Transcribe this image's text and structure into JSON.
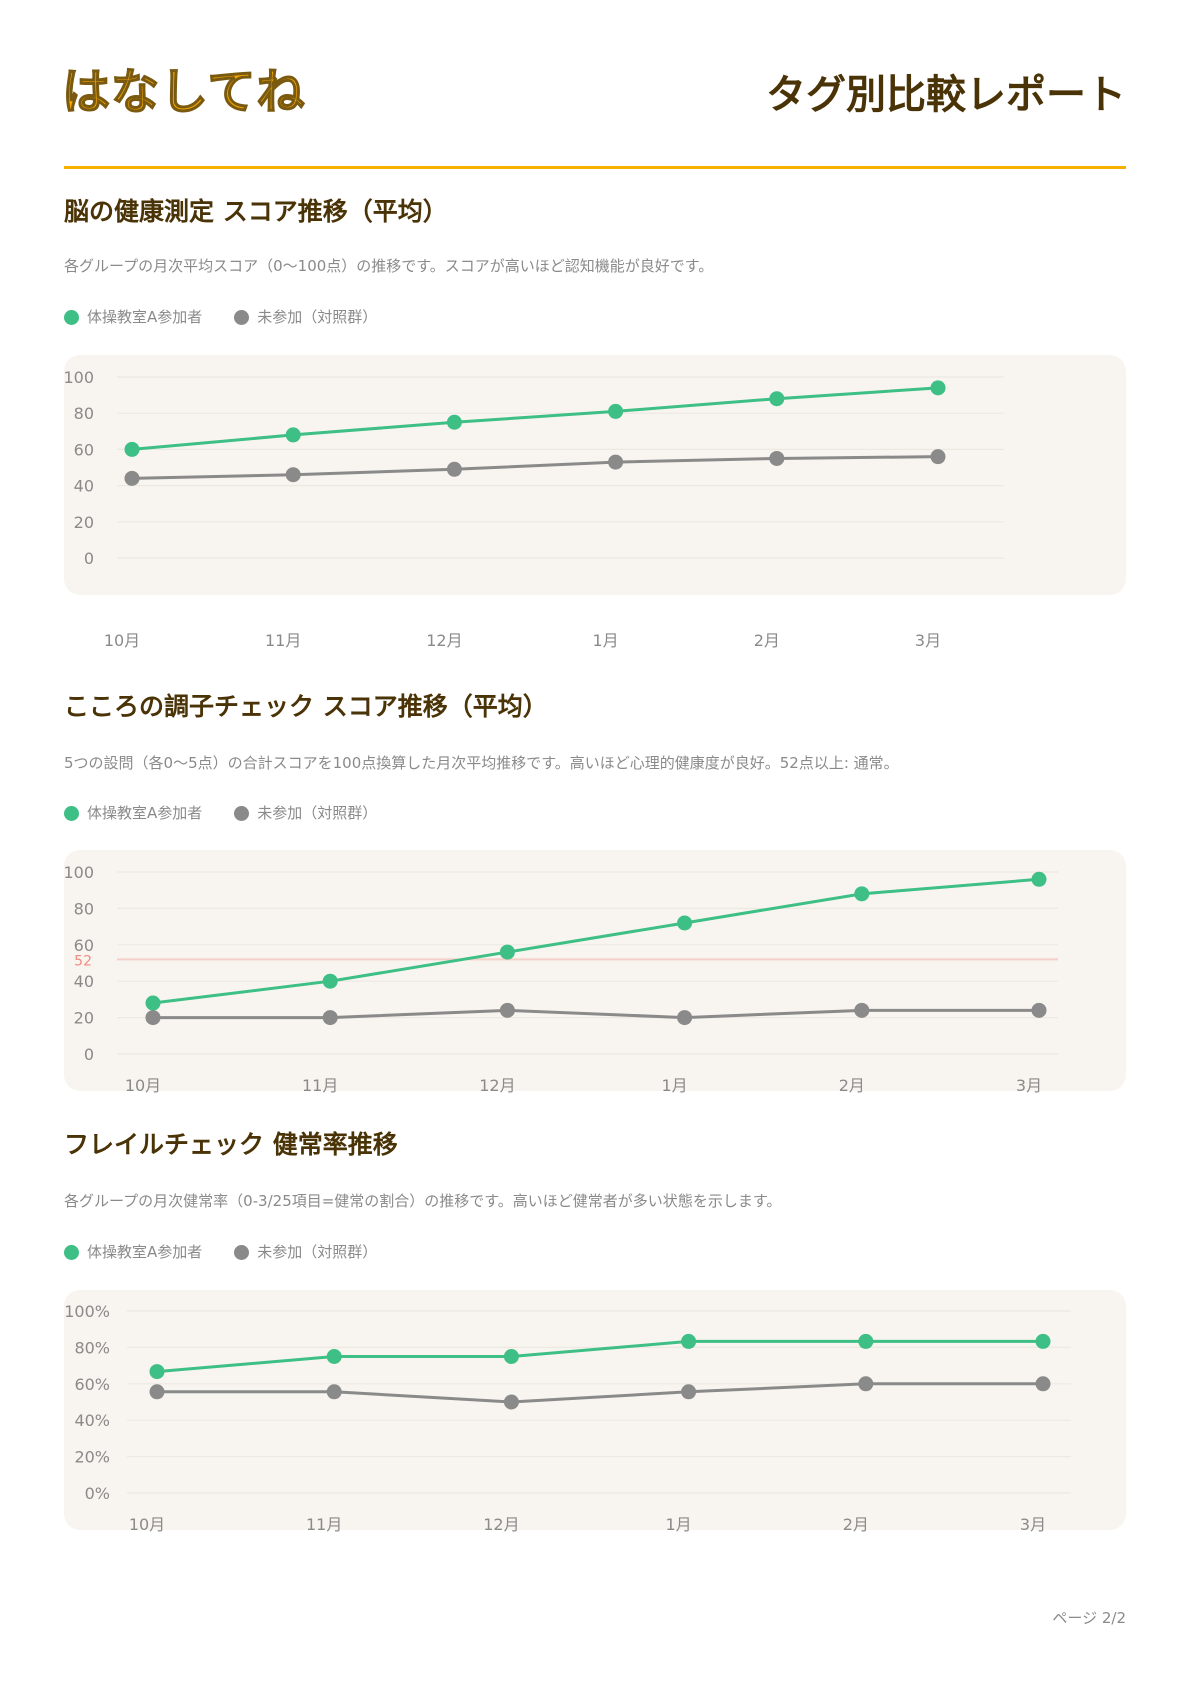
{
  "header": {
    "logo": "はなしてね",
    "title": "タグ別比較レポート"
  },
  "colors": {
    "accent": "#f7b000",
    "participant": "#3dbf85",
    "control": "#8a8a8a",
    "threshold": "#f28b82"
  },
  "legend": {
    "participant": "体操教室A参加者",
    "control": "未参加（対照群）"
  },
  "sections": [
    {
      "title": "脳の健康測定 スコア推移（平均）",
      "description": "各グループの月次平均スコア（0〜100点）の推移です。スコアが高いほど認知機能が良好です。"
    },
    {
      "title": "こころの調子チェック スコア推移（平均）",
      "description": "5つの設問（各0〜5点）の合計スコアを100点換算した月次平均推移です。高いほど心理的健康度が良好。52点以上: 通常。"
    },
    {
      "title": "フレイルチェック 健常率推移",
      "description": "各グループの月次健常率（0-3/25項目=健常の割合）の推移です。高いほど健常者が多い状態を示します。"
    }
  ],
  "chart_data": [
    {
      "type": "line",
      "categories": [
        "10月",
        "11月",
        "12月",
        "1月",
        "2月",
        "3月"
      ],
      "ylim": [
        0,
        100
      ],
      "yticks": [
        "0",
        "20",
        "40",
        "60",
        "80",
        "100"
      ],
      "grid": true,
      "series": [
        {
          "name": "体操教室A参加者",
          "values": [
            60,
            68,
            75,
            81,
            88,
            94
          ]
        },
        {
          "name": "未参加（対照群）",
          "values": [
            44,
            46,
            49,
            53,
            55,
            56
          ]
        }
      ]
    },
    {
      "type": "line",
      "categories": [
        "10月",
        "11月",
        "12月",
        "1月",
        "2月",
        "3月"
      ],
      "ylim": [
        0,
        100
      ],
      "yticks": [
        "0",
        "20",
        "40",
        "60",
        "80",
        "100"
      ],
      "grid": true,
      "reference_line": {
        "value": 52,
        "label": "52"
      },
      "series": [
        {
          "name": "体操教室A参加者",
          "values": [
            28,
            40,
            56,
            72,
            88,
            96
          ]
        },
        {
          "name": "未参加（対照群）",
          "values": [
            20,
            20,
            24,
            20,
            24,
            24
          ]
        }
      ]
    },
    {
      "type": "line",
      "categories": [
        "10月",
        "11月",
        "12月",
        "1月",
        "2月",
        "3月"
      ],
      "ylim": [
        0,
        100
      ],
      "yticks": [
        "0%",
        "20%",
        "40%",
        "60%",
        "80%",
        "100%"
      ],
      "grid": true,
      "series": [
        {
          "name": "体操教室A参加者",
          "values": [
            66.7,
            75,
            75,
            83.3,
            83.3,
            83.3
          ]
        },
        {
          "name": "未参加（対照群）",
          "values": [
            55.6,
            55.6,
            50,
            55.6,
            60,
            60
          ]
        }
      ]
    }
  ],
  "footer": {
    "page": "ページ 2/2"
  }
}
